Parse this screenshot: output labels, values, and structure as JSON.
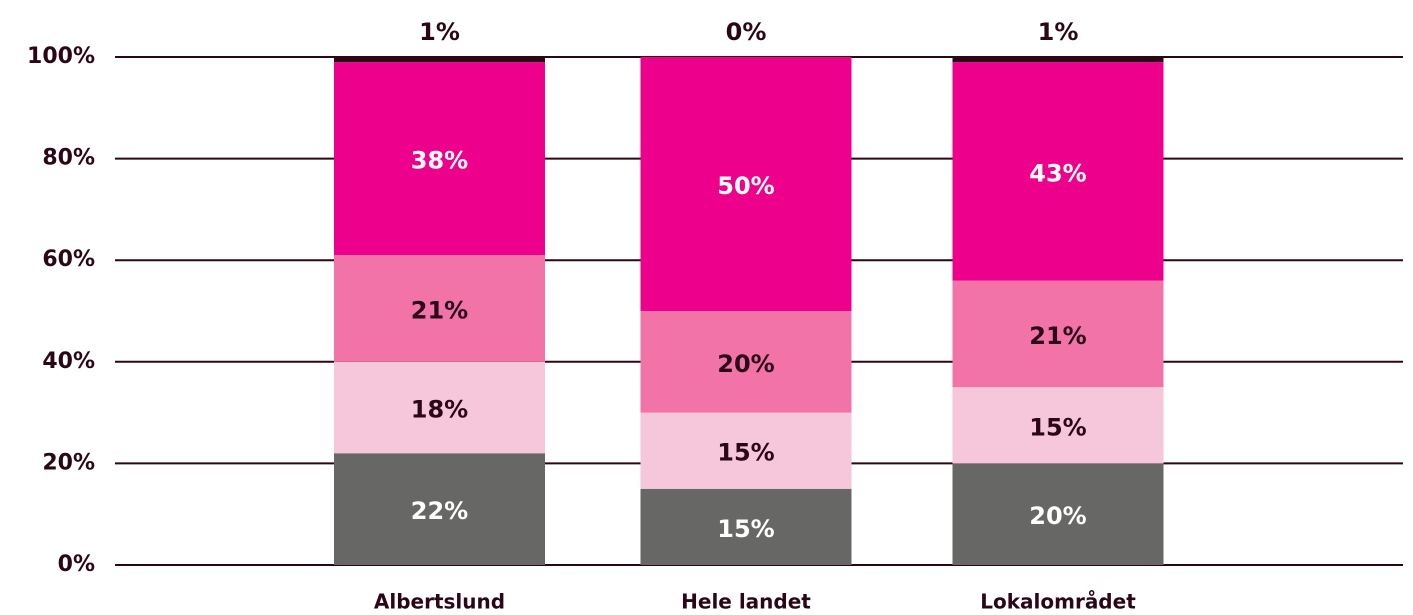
{
  "chart_data": {
    "type": "stacked_bar",
    "categories": [
      "Albertslund",
      "Hele landet",
      "Lokalområdet"
    ],
    "series": [
      {
        "color": "#676865",
        "values": [
          22,
          15,
          20
        ],
        "value_labels": [
          "22%",
          "15%",
          "20%"
        ]
      },
      {
        "color": "#f6c6da",
        "values": [
          18,
          15,
          15
        ],
        "value_labels": [
          "18%",
          "15%",
          "15%"
        ]
      },
      {
        "color": "#f173a8",
        "values": [
          21,
          20,
          21
        ],
        "value_labels": [
          "21%",
          "20%",
          "21%"
        ]
      },
      {
        "color": "#ec008c",
        "values": [
          38,
          50,
          43
        ],
        "value_labels": [
          "38%",
          "50%",
          "43%"
        ]
      },
      {
        "color": "#2b0616",
        "values": [
          1,
          0,
          1
        ],
        "value_labels": [
          "1%",
          "0%",
          "1%"
        ]
      }
    ],
    "ylim": [
      0,
      100
    ],
    "yticks": [
      {
        "value": 0,
        "label": "0%"
      },
      {
        "value": 20,
        "label": "20%"
      },
      {
        "value": 40,
        "label": "40%"
      },
      {
        "value": 60,
        "label": "60%"
      },
      {
        "value": 80,
        "label": "80%"
      },
      {
        "value": 100,
        "label": "100%"
      }
    ],
    "grid": true
  }
}
